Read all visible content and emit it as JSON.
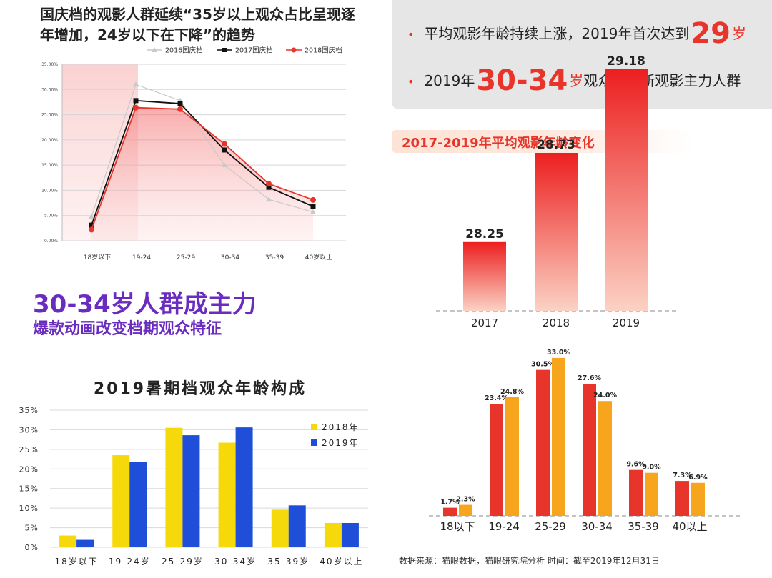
{
  "headline": {
    "line1": "国庆档的观影人群延续“35岁以上观众占比呈现逐",
    "line2": "年增加，24岁以下在下降”的趋势"
  },
  "callout": {
    "b1_pre": "平均观影年龄持续上涨，2019年首次达到",
    "b1_big": "29",
    "b1_post": "岁",
    "b2_pre": "2019年",
    "b2_big": "30-34",
    "b2_unit": "岁",
    "b2_post": "观众成为新观影主力人群"
  },
  "banner": {
    "text": "2017-2019年平均观影年龄变化"
  },
  "purple": {
    "line1": "30-34岁人群成主力",
    "line2": "爆款动画改变档期观众特征"
  },
  "summer_title": "2019暑期档观众年龄构成",
  "source": "数据来源：猫眼数据，猫眼研究院分析    时间：截至2019年12月31日",
  "colors": {
    "red": "#e8352c",
    "gray_line": "#c9c9c9",
    "black_line": "#111111",
    "yellow": "#f5d90a",
    "blue": "#1f4fd8",
    "orange": "#f7a51c",
    "purple": "#6a2bbf"
  },
  "chart_data": [
    {
      "type": "line",
      "categories": [
        "18岁以下",
        "19-24",
        "25-29",
        "30-34",
        "35-39",
        "40岁以上"
      ],
      "series": [
        {
          "name": "2016国庆档",
          "values": [
            4.8,
            31.0,
            27.8,
            15.0,
            8.2,
            5.7
          ]
        },
        {
          "name": "2017国庆档",
          "values": [
            3.1,
            27.8,
            27.2,
            18.0,
            10.6,
            6.8
          ]
        },
        {
          "name": "2018国庆档",
          "values": [
            2.2,
            26.4,
            26.1,
            19.2,
            11.3,
            8.1
          ]
        }
      ],
      "ylim": [
        0,
        35
      ],
      "yticks": [
        "0.00%",
        "5.00%",
        "10.00%",
        "15.00%",
        "20.00%",
        "25.00%",
        "30.00%",
        "35.00%"
      ],
      "legend": "top",
      "grid": true
    },
    {
      "type": "bar",
      "categories": [
        "2017",
        "2018",
        "2019"
      ],
      "values": [
        28.25,
        28.73,
        29.18
      ],
      "labels": [
        "28.25",
        "28.73",
        "29.18"
      ],
      "title": "2017-2019年平均观影年龄变化"
    },
    {
      "type": "bar",
      "title": "2019暑期档观众年龄构成",
      "categories": [
        "18岁以下",
        "19-24岁",
        "25-29岁",
        "30-34岁",
        "35-39岁",
        "40岁以上"
      ],
      "series": [
        {
          "name": "2018年",
          "values": [
            3.0,
            23.5,
            30.5,
            26.7,
            9.6,
            6.2
          ]
        },
        {
          "name": "2019年",
          "values": [
            1.9,
            21.7,
            28.6,
            30.6,
            10.7,
            6.2
          ]
        }
      ],
      "ylim": [
        0,
        35
      ],
      "yticks": [
        "0%",
        "5%",
        "10%",
        "15%",
        "20%",
        "25%",
        "30%",
        "35%"
      ],
      "legend": "right",
      "grid": true
    },
    {
      "type": "bar",
      "categories": [
        "18以下",
        "19-24",
        "25-29",
        "30-34",
        "35-39",
        "40以上"
      ],
      "series": [
        {
          "values": [
            1.7,
            23.4,
            30.5,
            27.6,
            9.6,
            7.3
          ]
        },
        {
          "values": [
            2.3,
            24.8,
            33.0,
            24.0,
            9.0,
            6.9
          ]
        }
      ],
      "labels_a": [
        "1.7%",
        "23.4%",
        "30.5%",
        "27.6%",
        "9.6%",
        "7.3%"
      ],
      "labels_b": [
        "2.3%",
        "24.8%",
        "33.0%",
        "24.0%",
        "9.0%",
        "6.9%"
      ]
    }
  ]
}
